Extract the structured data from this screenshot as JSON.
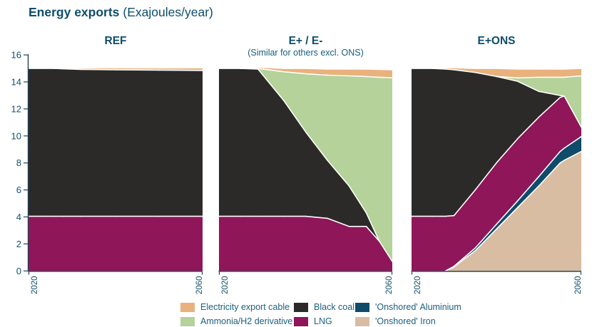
{
  "page": {
    "title_bold": "Energy exports",
    "title_unit": "(Exajoules/year)"
  },
  "colors": {
    "cable": "#E9B17B",
    "coal": "#2B2A28",
    "aluminium": "#0E4C69",
    "ammonia": "#B4D29A",
    "lng": "#8E1659",
    "iron": "#D8BDA3",
    "title_text": "#0E4D6C",
    "tick_text": "#14506E",
    "legend_text": "#1D6080",
    "axis_line": "#24425A",
    "series_edge": "#FFFFFF"
  },
  "chart_data": [
    {
      "type": "area",
      "stacked": true,
      "title": "REF",
      "subtitle": "",
      "ylim": [
        0,
        16
      ],
      "yticks": [
        0,
        2,
        4,
        6,
        8,
        10,
        12,
        14,
        16
      ],
      "xticks": [
        2020,
        2060
      ],
      "grid": false,
      "years": [
        2020,
        2026,
        2028,
        2032,
        2040,
        2050,
        2060
      ],
      "series": [
        {
          "name": "LNG",
          "key": "lng",
          "values": [
            4.05,
            4.05,
            4.05,
            4.05,
            4.05,
            4.05,
            4.05
          ]
        },
        {
          "name": "Black coal",
          "key": "coal",
          "values": [
            10.95,
            10.95,
            10.92,
            10.88,
            10.85,
            10.82,
            10.8
          ]
        },
        {
          "name": "Electricity export cable",
          "key": "cable",
          "values": [
            0,
            0,
            0.05,
            0.1,
            0.15,
            0.17,
            0.2
          ]
        }
      ]
    },
    {
      "type": "area",
      "stacked": true,
      "title": "E+ / E-",
      "subtitle": "(Similar for others excl. ONS)",
      "ylim": [
        0,
        16
      ],
      "yticks": [
        0,
        2,
        4,
        6,
        8,
        10,
        12,
        14,
        16
      ],
      "xticks": [
        2020,
        2060
      ],
      "grid": false,
      "years": [
        2020,
        2025,
        2029,
        2035,
        2040,
        2045,
        2050,
        2054,
        2057,
        2060
      ],
      "series": [
        {
          "name": "LNG",
          "key": "lng",
          "values": [
            4.05,
            4.05,
            4.05,
            4.05,
            4.05,
            3.9,
            3.3,
            3.3,
            2.2,
            0.7
          ]
        },
        {
          "name": "Black coal",
          "key": "coal",
          "values": [
            10.95,
            10.95,
            10.9,
            8.55,
            6.25,
            4.3,
            3.0,
            1.0,
            0,
            0
          ]
        },
        {
          "name": "Ammonia/H2 derivative",
          "key": "ammonia",
          "values": [
            0,
            0,
            0.05,
            2.15,
            4.3,
            6.3,
            8.15,
            10.1,
            12.15,
            13.6
          ]
        },
        {
          "name": "Electricity export cable",
          "key": "cable",
          "values": [
            0,
            0,
            0.1,
            0.25,
            0.4,
            0.45,
            0.5,
            0.55,
            0.58,
            0.6
          ]
        }
      ]
    },
    {
      "type": "area",
      "stacked": true,
      "title": "E+ONS",
      "subtitle": "",
      "ylim": [
        0,
        16
      ],
      "yticks": [
        0,
        2,
        4,
        6,
        8,
        10,
        12,
        14,
        16
      ],
      "xticks": [
        2020,
        2060
      ],
      "grid": false,
      "years": [
        2020,
        2025,
        2028,
        2030,
        2035,
        2040,
        2045,
        2050,
        2055,
        2056,
        2060
      ],
      "series": [
        {
          "name": "'Onshored' Iron",
          "key": "iron",
          "values": [
            0,
            0,
            0,
            0.3,
            1.5,
            3.1,
            4.7,
            6.3,
            8.0,
            8.2,
            8.85
          ]
        },
        {
          "name": "'Onshored' Aluminium",
          "key": "aluminium",
          "values": [
            0,
            0,
            0,
            0.05,
            0.2,
            0.35,
            0.5,
            0.7,
            0.85,
            0.9,
            1.1
          ]
        },
        {
          "name": "LNG",
          "key": "lng",
          "values": [
            4.05,
            4.05,
            4.05,
            3.75,
            4.3,
            4.55,
            4.6,
            4.4,
            4.0,
            3.85,
            0.7
          ]
        },
        {
          "name": "Black coal",
          "key": "coal",
          "values": [
            10.95,
            10.95,
            10.9,
            10.8,
            8.7,
            6.4,
            4.25,
            1.9,
            0.15,
            0,
            0
          ]
        },
        {
          "name": "Ammonia/H2 derivative",
          "key": "ammonia",
          "values": [
            0,
            0,
            0,
            0,
            0,
            0,
            0.25,
            1.05,
            1.35,
            1.4,
            3.8
          ]
        },
        {
          "name": "Electricity export cable",
          "key": "cable",
          "values": [
            0,
            0,
            0.1,
            0.15,
            0.3,
            0.6,
            0.65,
            0.6,
            0.6,
            0.6,
            0.55
          ]
        }
      ]
    }
  ],
  "legend": {
    "items": [
      {
        "label": "Electricity export cable",
        "key": "cable"
      },
      {
        "label": "Black coal",
        "key": "coal"
      },
      {
        "label": "'Onshored' Aluminium",
        "key": "aluminium"
      },
      {
        "label": "Ammonia/H2 derivative",
        "key": "ammonia"
      },
      {
        "label": "LNG",
        "key": "lng"
      },
      {
        "label": "'Onshored' Iron",
        "key": "iron"
      }
    ]
  }
}
